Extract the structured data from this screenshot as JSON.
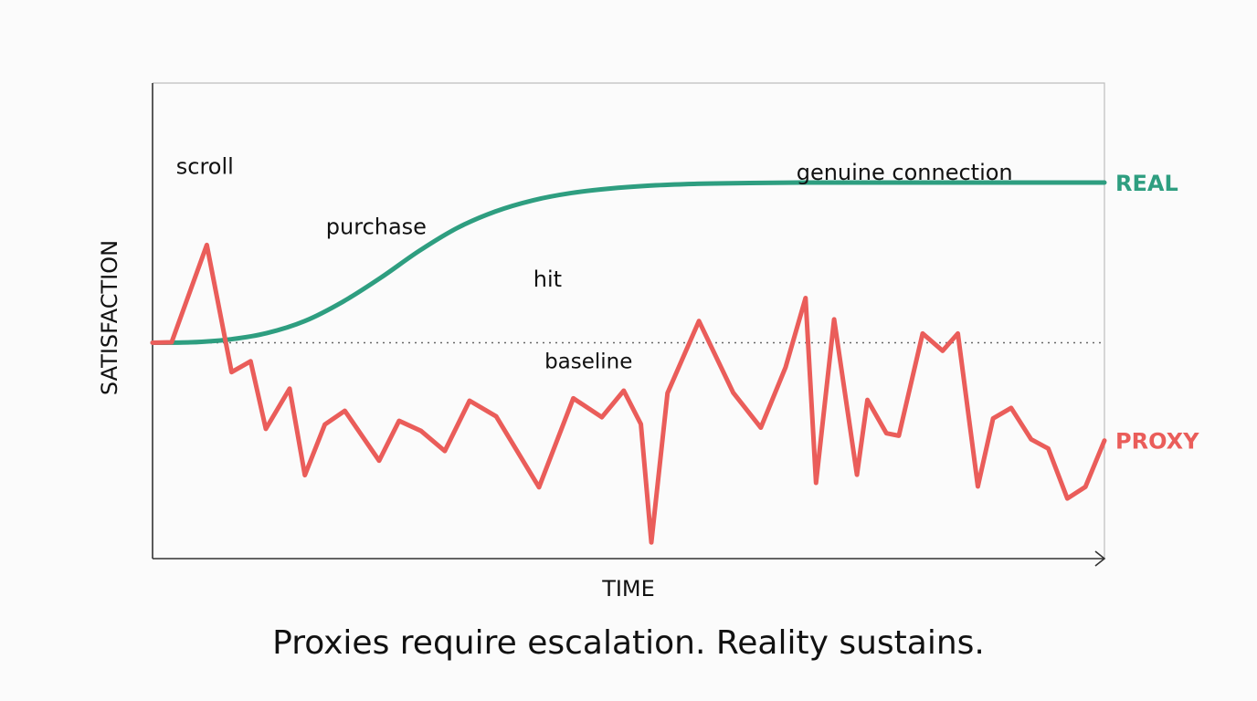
{
  "chart_data": {
    "type": "line",
    "xlabel": "TIME",
    "ylabel": "SATISFACTION",
    "xlim": [
      0,
      100
    ],
    "ylim": [
      0,
      100
    ],
    "baseline": {
      "y": 50,
      "label": "baseline"
    },
    "grid": false,
    "series": [
      {
        "name": "REAL",
        "color": "#2e9e80",
        "x": [
          0,
          4,
          8,
          12,
          16,
          20,
          24,
          28,
          32,
          36,
          40,
          44,
          48,
          52,
          56,
          60,
          64,
          68,
          72,
          76,
          80,
          84,
          88,
          92,
          96,
          100
        ],
        "y": [
          50,
          50.1,
          50.8,
          52.4,
          55.4,
          60.2,
          66.2,
          72.8,
          78.5,
          82.6,
          85.4,
          87.2,
          88.3,
          89,
          89.4,
          89.6,
          89.7,
          89.8,
          89.8,
          89.8,
          89.8,
          89.8,
          89.8,
          89.8,
          89.8,
          89.8
        ]
      },
      {
        "name": "PROXY",
        "color": "#ea5d5a",
        "x": [
          0,
          2,
          5.7,
          8.3,
          10.3,
          11.9,
          14.4,
          16,
          18.1,
          20.2,
          23.8,
          25.9,
          28.2,
          30.7,
          33.3,
          36.1,
          40.6,
          44.2,
          47.2,
          49.5,
          51.3,
          52.4,
          54.1,
          57.4,
          61,
          63.9,
          66.5,
          68.6,
          69.7,
          71.6,
          74,
          75.1,
          77.1,
          78.4,
          80.9,
          83,
          84.6,
          86.7,
          88.3,
          90.2,
          92.3,
          94.1,
          96.1,
          98,
          100
        ],
        "y": [
          50,
          50.1,
          74.3,
          42.7,
          45.4,
          28.6,
          38.6,
          17.1,
          29.7,
          33.1,
          20.7,
          30.6,
          28.1,
          23.1,
          35.6,
          31.7,
          14.1,
          36.2,
          31.5,
          38.1,
          29.8,
          0.4,
          37.5,
          55.4,
          37.6,
          28.9,
          43.9,
          61.1,
          15.2,
          55.8,
          17.2,
          35.8,
          27.5,
          26.9,
          52.3,
          48,
          52.3,
          14.3,
          31.2,
          33.8,
          26,
          23.7,
          11.3,
          14.2,
          25.7
        ]
      }
    ],
    "annotations": [
      {
        "text": "scroll",
        "x": 5.5,
        "y": 92
      },
      {
        "text": "purchase",
        "x": 23.5,
        "y": 77
      },
      {
        "text": "hit",
        "x": 41.5,
        "y": 64
      },
      {
        "text": "genuine connection",
        "x": 79,
        "y": 90.5
      }
    ]
  },
  "caption": "Proxies require escalation. Reality sustains."
}
